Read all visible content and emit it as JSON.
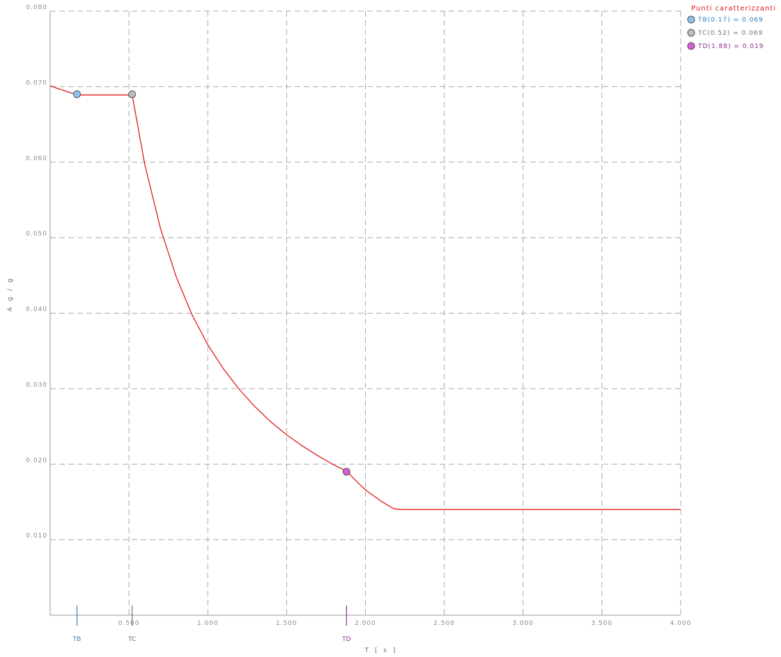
{
  "chart_data": {
    "type": "line",
    "xlabel": "T   [ s ]",
    "ylabel": "A g / g",
    "xlim": [
      0,
      4
    ],
    "ylim": [
      0,
      0.08
    ],
    "grid": true,
    "legend_position": "top-right",
    "x_ticks": [
      {
        "value": 0.5,
        "label": "0.500"
      },
      {
        "value": 1.0,
        "label": "1.000"
      },
      {
        "value": 1.5,
        "label": "1.500"
      },
      {
        "value": 2.0,
        "label": "2.000"
      },
      {
        "value": 2.5,
        "label": "2.500"
      },
      {
        "value": 3.0,
        "label": "3.000"
      },
      {
        "value": 3.5,
        "label": "3.500"
      },
      {
        "value": 4.0,
        "label": "4.000"
      }
    ],
    "y_ticks": [
      {
        "value": 0.01,
        "label": "0.010"
      },
      {
        "value": 0.02,
        "label": "0.020"
      },
      {
        "value": 0.03,
        "label": "0.030"
      },
      {
        "value": 0.04,
        "label": "0.040"
      },
      {
        "value": 0.05,
        "label": "0.050"
      },
      {
        "value": 0.06,
        "label": "0.060"
      },
      {
        "value": 0.07,
        "label": "0.070"
      },
      {
        "value": 0.08,
        "label": "0.080"
      }
    ],
    "series": [
      {
        "color": "#e0191b",
        "points": [
          [
            0.0,
            0.0701
          ],
          [
            0.17,
            0.0689
          ],
          [
            0.52,
            0.0689
          ],
          [
            0.6,
            0.0597
          ],
          [
            0.7,
            0.0512
          ],
          [
            0.8,
            0.0448
          ],
          [
            0.9,
            0.0398
          ],
          [
            1.0,
            0.0358
          ],
          [
            1.1,
            0.0326
          ],
          [
            1.2,
            0.0299
          ],
          [
            1.3,
            0.0276
          ],
          [
            1.4,
            0.0256
          ],
          [
            1.5,
            0.0239
          ],
          [
            1.6,
            0.0224
          ],
          [
            1.7,
            0.0211
          ],
          [
            1.8,
            0.0199
          ],
          [
            1.88,
            0.0191
          ],
          [
            1.95,
            0.0176
          ],
          [
            2.0,
            0.0166
          ],
          [
            2.1,
            0.0151
          ],
          [
            2.18,
            0.0141
          ],
          [
            2.22,
            0.014
          ],
          [
            4.0,
            0.014
          ]
        ]
      }
    ],
    "characteristic_points": [
      {
        "id": "TB",
        "x": 0.17,
        "y": 0.069,
        "legend": "TB(0.17) = 0.069",
        "color": "#2e7fc2",
        "fill": "#8ec3ee"
      },
      {
        "id": "TC",
        "x": 0.52,
        "y": 0.069,
        "legend": "TC(0.52) = 0.069",
        "color": "#707070",
        "fill": "#bdbdbd"
      },
      {
        "id": "TD",
        "x": 1.88,
        "y": 0.019,
        "legend": "TD(1.88) = 0.019",
        "color": "#8e2a8e",
        "fill": "#d85bd8"
      }
    ],
    "legend_title": "Punti caratterizzanti",
    "legend_title_color": "#e0191b"
  }
}
